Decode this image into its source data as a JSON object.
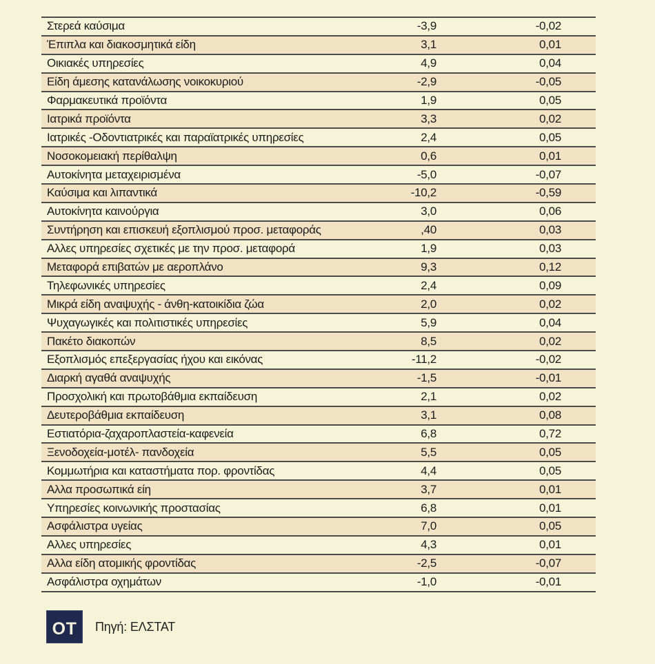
{
  "page": {
    "background_color": "#F5F4D8"
  },
  "chart_data": {
    "type": "table",
    "columns": [
      "category",
      "value_1",
      "value_2"
    ],
    "row_stripe_colors": {
      "odd": "#F5F4D8",
      "even": "#F0E2C3"
    },
    "grid": "horizontal-rules-only",
    "rows": [
      {
        "label": "Στερεά καύσιμα",
        "pct": "-3,9",
        "contrib": "-0,02"
      },
      {
        "label": "Έπιπλα και διακοσμητικά είδη",
        "pct": "3,1",
        "contrib": "0,01"
      },
      {
        "label": "Οικιακές υπηρεσίες",
        "pct": "4,9",
        "contrib": "0,04"
      },
      {
        "label": "Είδη άμεσης κατανάλωσης νοικοκυριού",
        "pct": "-2,9",
        "contrib": "-0,05"
      },
      {
        "label": "Φαρμακευτικά προϊόντα",
        "pct": "1,9",
        "contrib": "0,05"
      },
      {
        "label": "Ιατρικά προϊόντα",
        "pct": "3,3",
        "contrib": "0,02"
      },
      {
        "label": "Ιατρικές -Οδοντιατρικές και παραϊατρικές υπηρεσίες",
        "pct": "2,4",
        "contrib": "0,05"
      },
      {
        "label": "Νοσοκομειακή περίθαλψη",
        "pct": "0,6",
        "contrib": "0,01"
      },
      {
        "label": "Αυτοκίνητα μεταχειρισμένα",
        "pct": "-5,0",
        "contrib": "-0,07"
      },
      {
        "label": "Καύσιμα και λιπαντικά",
        "pct": "-10,2",
        "contrib": "-0,59"
      },
      {
        "label": "Αυτοκίνητα καινούργια",
        "pct": "3,0",
        "contrib": "0,06"
      },
      {
        "label": "Συντήρηση και επισκευή εξοπλισμού προσ. μεταφοράς",
        "pct": ",40",
        "contrib": "0,03"
      },
      {
        "label": "Αλλες υπηρεσίες σχετικές με την προσ. μεταφορά",
        "pct": "1,9",
        "contrib": "0,03"
      },
      {
        "label": "Μεταφορά επιβατών με αεροπλάνο",
        "pct": "9,3",
        "contrib": "0,12"
      },
      {
        "label": "Τηλεφωνικές υπηρεσίες",
        "pct": "2,4",
        "contrib": "0,09"
      },
      {
        "label": "Μικρά είδη αναψυχής - άνθη-κατοικίδια ζώα",
        "pct": "2,0",
        "contrib": "0,02"
      },
      {
        "label": "Ψυχαγωγικές και πολιτιστικές υπηρεσίες",
        "pct": "5,9",
        "contrib": "0,04"
      },
      {
        "label": "Πακέτο διακοπών",
        "pct": "8,5",
        "contrib": "0,02"
      },
      {
        "label": "Εξοπλισμός επεξεργασίας ήχου και εικόνας",
        "pct": "-11,2",
        "contrib": "-0,02"
      },
      {
        "label": "Διαρκή αγαθά αναψυχής",
        "pct": "-1,5",
        "contrib": "-0,01"
      },
      {
        "label": "Προσχολική και πρωτοβάθμια εκπαίδευση",
        "pct": "2,1",
        "contrib": "0,02"
      },
      {
        "label": "Δευτεροβάθμια εκπαίδευση",
        "pct": "3,1",
        "contrib": "0,08"
      },
      {
        "label": "Εστιατόρια-ζαχαροπλαστεία-καφενεία",
        "pct": "6,8",
        "contrib": "0,72"
      },
      {
        "label": "Ξενοδοχεία-μοτέλ- πανδοχεία",
        "pct": "5,5",
        "contrib": "0,05"
      },
      {
        "label": "Κομμωτήρια και καταστήματα πορ. φροντίδας",
        "pct": "4,4",
        "contrib": "0,05"
      },
      {
        "label": "Αλλα προσωπικά είη",
        "pct": "3,7",
        "contrib": "0,01"
      },
      {
        "label": "Υπηρεσίες κοινωνικής προστασίας",
        "pct": "6,8",
        "contrib": "0,01"
      },
      {
        "label": "Ασφάλιστρα υγείας",
        "pct": "7,0",
        "contrib": "0,05"
      },
      {
        "label": "Αλλες υπηρεσίες",
        "pct": "4,3",
        "contrib": "0,01"
      },
      {
        "label": "Αλλα είδη ατομικής φροντίδας",
        "pct": "-2,5",
        "contrib": "-0,07"
      },
      {
        "label": "Ασφάλιστρα οχημάτων",
        "pct": "-1,0",
        "contrib": "-0,01"
      }
    ]
  },
  "footer": {
    "logo_text": "OT",
    "logo_bg_color": "#1F2A4E",
    "source": "Πηγή: ΕΛΣΤΑΤ"
  }
}
